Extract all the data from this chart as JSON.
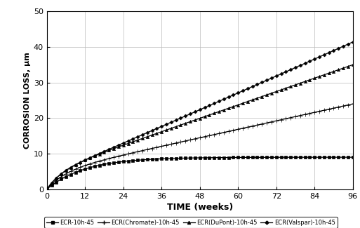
{
  "title": "",
  "xlabel": "TIME (weeks)",
  "ylabel": "CORROSION LOSS, µm",
  "xlim": [
    0,
    96
  ],
  "ylim": [
    0,
    50
  ],
  "xticks": [
    0,
    12,
    24,
    36,
    48,
    60,
    72,
    84,
    96
  ],
  "yticks": [
    0,
    10,
    20,
    30,
    40,
    50
  ],
  "series": [
    {
      "label": "ECR-10h-45",
      "marker": "s",
      "color": "#000000",
      "final_value": 9.0
    },
    {
      "label": "ECR(Chromate)-10h-45",
      "marker": "+",
      "color": "#000000",
      "final_value": 24.0
    },
    {
      "label": "ECR(DuPont)-10h-45",
      "marker": "^",
      "color": "#000000",
      "final_value": 35.0
    },
    {
      "label": "ECR(Valspar)-10h-45",
      "marker": "D",
      "color": "#000000",
      "final_value": 41.4
    }
  ],
  "background_color": "#ffffff",
  "grid_color": "#bbbbbb",
  "marker_interval_weeks": 1.5,
  "linewidth": 0.9,
  "marker_size": 3.0,
  "xlabel_fontsize": 9,
  "ylabel_fontsize": 8,
  "tick_fontsize": 8,
  "legend_fontsize": 6.0
}
